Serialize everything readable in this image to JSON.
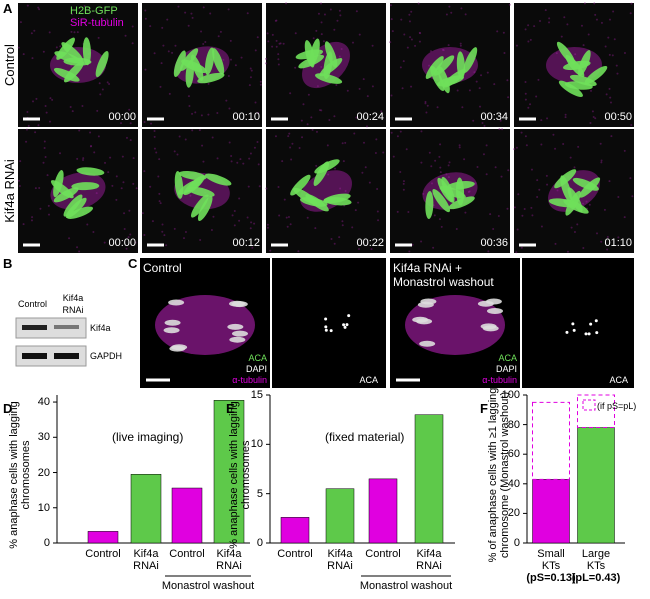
{
  "panel_labels": [
    "A",
    "B",
    "C",
    "D",
    "E",
    "F"
  ],
  "panel_a": {
    "channels": [
      "H2B-GFP",
      "SiR-tubulin"
    ],
    "rows": [
      {
        "label": "Control",
        "times": [
          "00:00",
          "00:10",
          "00:24",
          "00:34",
          "00:50"
        ]
      },
      {
        "label": "Kif4a RNAi",
        "times": [
          "00:00",
          "00:12",
          "00:22",
          "00:36",
          "01:10"
        ]
      }
    ]
  },
  "panel_b": {
    "lanes": [
      "Control",
      "Kif4a RNAi"
    ],
    "bands": [
      "Kif4a",
      "GAPDH"
    ]
  },
  "panel_c": {
    "images": [
      {
        "title": "Control",
        "channels": [
          "ACA",
          "DAPI",
          "α-tubulin"
        ],
        "single": "ACA"
      },
      {
        "title": "Kif4a RNAi + Monastrol washout",
        "channels": [
          "ACA",
          "DAPI",
          "α-tubulin"
        ],
        "single": "ACA"
      }
    ]
  },
  "chart_data": [
    {
      "type": "bar",
      "annotation": "(live imaging)",
      "y_label": "% anaphase cells with lagging chromosomes",
      "categories": [
        "Control",
        "Kif4a RNAi",
        "Control",
        "Kif4a RNAi"
      ],
      "values": [
        3.3,
        19.5,
        15.6,
        40.5
      ],
      "colors": [
        "#e000e0",
        "#5ec94a",
        "#e000e0",
        "#5ec94a"
      ],
      "group_label": "Monastrol washout",
      "ylim": [
        0,
        42
      ],
      "yticks": [
        0,
        10,
        20,
        30,
        40
      ]
    },
    {
      "type": "bar",
      "annotation": "(fixed material)",
      "y_label": "% anaphase cells with lagging chromosomes",
      "categories": [
        "Control",
        "Kif4a RNAi",
        "Control",
        "Kif4a RNAi"
      ],
      "values": [
        2.6,
        5.5,
        6.5,
        13.0
      ],
      "colors": [
        "#e000e0",
        "#5ec94a",
        "#e000e0",
        "#5ec94a"
      ],
      "group_label": "Monastrol washout",
      "ylim": [
        0,
        15
      ],
      "yticks": [
        0,
        5,
        10,
        15
      ]
    },
    {
      "type": "bar",
      "y_label": "% of anaphase cells with ≥1 lagging chromosome (Monastrol washout)",
      "categories": [
        "Small KTs",
        "Large KTs"
      ],
      "category_notes": [
        "(pS=0.13)",
        "(pL=0.43)"
      ],
      "values": [
        43,
        78
      ],
      "colors": [
        "#e000e0",
        "#5ec94a"
      ],
      "dashed_values": [
        95,
        100
      ],
      "dashed_label": "(if pS=pL)",
      "ylim": [
        0,
        100
      ],
      "yticks": [
        0,
        20,
        40,
        60,
        80,
        100
      ]
    }
  ]
}
